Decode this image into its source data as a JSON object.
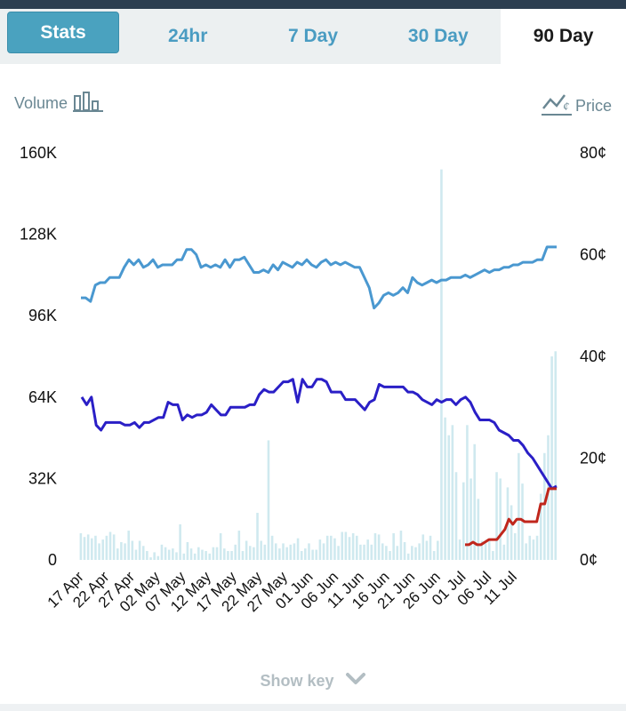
{
  "tabs": [
    {
      "label": "Stats"
    },
    {
      "label": "24hr"
    },
    {
      "label": "7 Day"
    },
    {
      "label": "30 Day"
    },
    {
      "label": "90 Day"
    }
  ],
  "legend": {
    "volume_label": "Volume",
    "price_label": "Price"
  },
  "show_key": "Show key",
  "icons": {
    "volume": "bar-chart-icon",
    "price": "price-line-icon",
    "chevron": "chevron-down-icon"
  },
  "colors": {
    "tab_active_bg": "#4aa2bf",
    "series_blue_light": "#4a98d0",
    "series_blue_dark": "#2a1fc6",
    "series_red": "#c0261c",
    "volume_bars": "#cfe9ef"
  },
  "chart_data": {
    "type": "line",
    "left_axis": {
      "label": "Volume",
      "ticks": [
        "0",
        "32K",
        "64K",
        "96K",
        "128K",
        "160K"
      ],
      "range": [
        0,
        160000
      ]
    },
    "right_axis": {
      "label": "Price",
      "ticks": [
        "0¢",
        "20¢",
        "40¢",
        "60¢",
        "80¢"
      ],
      "range": [
        0,
        80
      ]
    },
    "x_ticks": [
      "17 Apr",
      "22 Apr",
      "27 Apr",
      "02 May",
      "07 May",
      "12 May",
      "17 May",
      "22 May",
      "27 May",
      "01 Jun",
      "06 Jun",
      "11 Jun",
      "16 Jun",
      "21 Jun",
      "26 Jun",
      "01 Jul",
      "06 Jul",
      "11 Jul"
    ],
    "series": [
      {
        "values": [
          51.5,
          51.5,
          50.8,
          54,
          54.5,
          54.5,
          55.5,
          55.5,
          55.5,
          57.5,
          59,
          58,
          59,
          57.5,
          58,
          59,
          57.5,
          58,
          58,
          58,
          59,
          59,
          61,
          61,
          60,
          57.5,
          58,
          57.5,
          58,
          57.5,
          59,
          57.5,
          59,
          59,
          59.5,
          58,
          56.5,
          56.5,
          57,
          56.5,
          58,
          57,
          58.5,
          58,
          57.5,
          58.5,
          58,
          59,
          58,
          57.5,
          58.5,
          59,
          58,
          58.5,
          58,
          58.5,
          58,
          57.5,
          57.5,
          55.5,
          53.5,
          49.5,
          50.5,
          52,
          52.5,
          52,
          52.5,
          53.5,
          52.5,
          55.5,
          54.5,
          54,
          54.5,
          55,
          54.5,
          55,
          55,
          55.5,
          55.5,
          55.5,
          56,
          55.5,
          56,
          56.5,
          57,
          56.5,
          57,
          57,
          57.5,
          57.5,
          58,
          58,
          58.5,
          58.5,
          58.5,
          59,
          59,
          61.5,
          61.5,
          61.5
        ]
      },
      {
        "values": [
          32,
          30.5,
          32,
          26.5,
          25.5,
          27,
          27,
          27,
          27,
          26.5,
          26.5,
          27,
          26,
          27,
          27,
          27.5,
          28,
          28,
          31,
          30.5,
          30.5,
          27.5,
          28.5,
          28,
          28.5,
          28.5,
          29,
          30.5,
          29.5,
          28.5,
          28.5,
          30,
          30,
          30,
          30,
          30.5,
          30.5,
          32.5,
          33.5,
          33,
          33,
          34,
          35,
          35,
          35.5,
          31,
          35.5,
          34,
          34,
          35.5,
          35.5,
          35,
          33,
          33,
          33,
          31.5,
          31.5,
          31.5,
          30.5,
          29.5,
          31,
          31.5,
          34.5,
          34,
          34,
          34,
          34,
          34,
          33,
          33,
          32.5,
          31.5,
          31,
          30.5,
          31.5,
          31,
          31.5,
          31.5,
          30.5,
          31.5,
          32,
          31,
          29,
          27.5,
          27.5,
          27.5,
          27,
          25.5,
          25,
          24.5,
          23.5,
          23.5,
          22.5,
          21,
          20,
          18.5,
          17,
          15.5,
          14,
          14.5
        ]
      },
      {
        "values": [
          3,
          3,
          3.5,
          3,
          3,
          3.5,
          4,
          4,
          4,
          5,
          6,
          8,
          7,
          8,
          8,
          7.5,
          7.5,
          7.5,
          7.5,
          11,
          11,
          14,
          14,
          14
        ]
      },
      {
        "values": [
          10.5,
          9,
          10,
          8.5,
          9.5,
          6.5,
          8,
          9.5,
          11,
          10,
          4.5,
          7,
          6.5,
          11.5,
          7.5,
          4,
          7.5,
          5.5,
          3.5,
          1,
          3,
          1.5,
          6,
          5,
          4,
          4.5,
          3,
          14,
          2.5,
          7,
          4.5,
          2.5,
          5,
          4,
          3.5,
          2.5,
          5,
          5,
          10.5,
          4.5,
          3.5,
          3.5,
          6,
          11.5,
          3.5,
          7.5,
          5.5,
          5,
          18.5,
          7.5,
          6,
          47,
          9.5,
          6.5,
          4.5,
          6.5,
          5,
          6,
          6.5,
          8.5,
          3.5,
          4.5,
          6.5,
          4,
          4,
          8,
          6.5,
          9.5,
          9.5,
          8.5,
          5.5,
          11,
          11,
          9,
          10.5,
          9.5,
          6,
          6,
          8,
          6,
          10.5,
          10,
          6.5,
          5.5,
          3.5,
          10.5,
          5.5,
          11.5,
          7,
          2.5,
          5.5,
          5,
          6.5,
          10,
          7.5,
          9.5,
          3.5,
          7.5,
          153.5,
          56,
          49,
          53,
          34.5,
          8,
          30.5,
          53,
          32,
          45.5,
          24,
          7.5,
          6.5,
          8,
          3.5,
          34.5,
          32,
          6,
          28.5,
          21.5,
          10.5,
          42,
          30,
          6.5,
          9.5,
          8,
          9.5,
          26,
          42,
          49,
          80,
          82
        ]
      }
    ]
  }
}
